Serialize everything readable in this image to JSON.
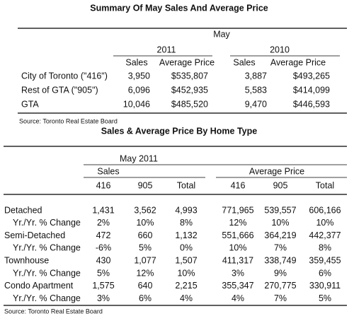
{
  "table1": {
    "title": "Summary Of May Sales And Average Price",
    "group": "May",
    "years": [
      "2011",
      "2010"
    ],
    "columns": [
      "Sales",
      "Average Price",
      "Sales",
      "Average Price"
    ],
    "rows": [
      [
        "City of Toronto (\"416\")",
        "3,950",
        "$535,807",
        "3,887",
        "$493,265"
      ],
      [
        "Rest of GTA (\"905\")",
        "6,096",
        "$452,935",
        "5,583",
        "$414,099"
      ],
      [
        "GTA",
        "10,046",
        "$485,520",
        "9,470",
        "$446,593"
      ]
    ],
    "source": "Source: Toronto Real Estate Board"
  },
  "table2": {
    "title": "Sales & Average Price  By Home Type",
    "period": "May 2011",
    "groups": [
      "Sales",
      "Average Price"
    ],
    "columns": [
      "416",
      "905",
      "Total",
      "416",
      "905",
      "Total"
    ],
    "rows": [
      [
        "Detached",
        "1,431",
        "3,562",
        "4,993",
        "771,965",
        "539,557",
        "606,166"
      ],
      [
        "Yr./Yr. % Change",
        "2%",
        "10%",
        "8%",
        "12%",
        "10%",
        "10%"
      ],
      [
        "Semi-Detached",
        "472",
        "660",
        "1,132",
        "551,666",
        "364,219",
        "442,377"
      ],
      [
        "Yr./Yr. % Change",
        "-6%",
        "5%",
        "0%",
        "10%",
        "7%",
        "8%"
      ],
      [
        "Townhouse",
        "430",
        "1,077",
        "1,507",
        "411,317",
        "338,749",
        "359,455"
      ],
      [
        "Yr./Yr. % Change",
        "5%",
        "12%",
        "10%",
        "3%",
        "9%",
        "6%"
      ],
      [
        "Condo Apartment",
        "1,575",
        "640",
        "2,215",
        "355,347",
        "270,775",
        "330,911"
      ],
      [
        "Yr./Yr. % Change",
        "3%",
        "6%",
        "4%",
        "4%",
        "7%",
        "5%"
      ]
    ],
    "source": "Source: Toronto Real Estate Board"
  }
}
